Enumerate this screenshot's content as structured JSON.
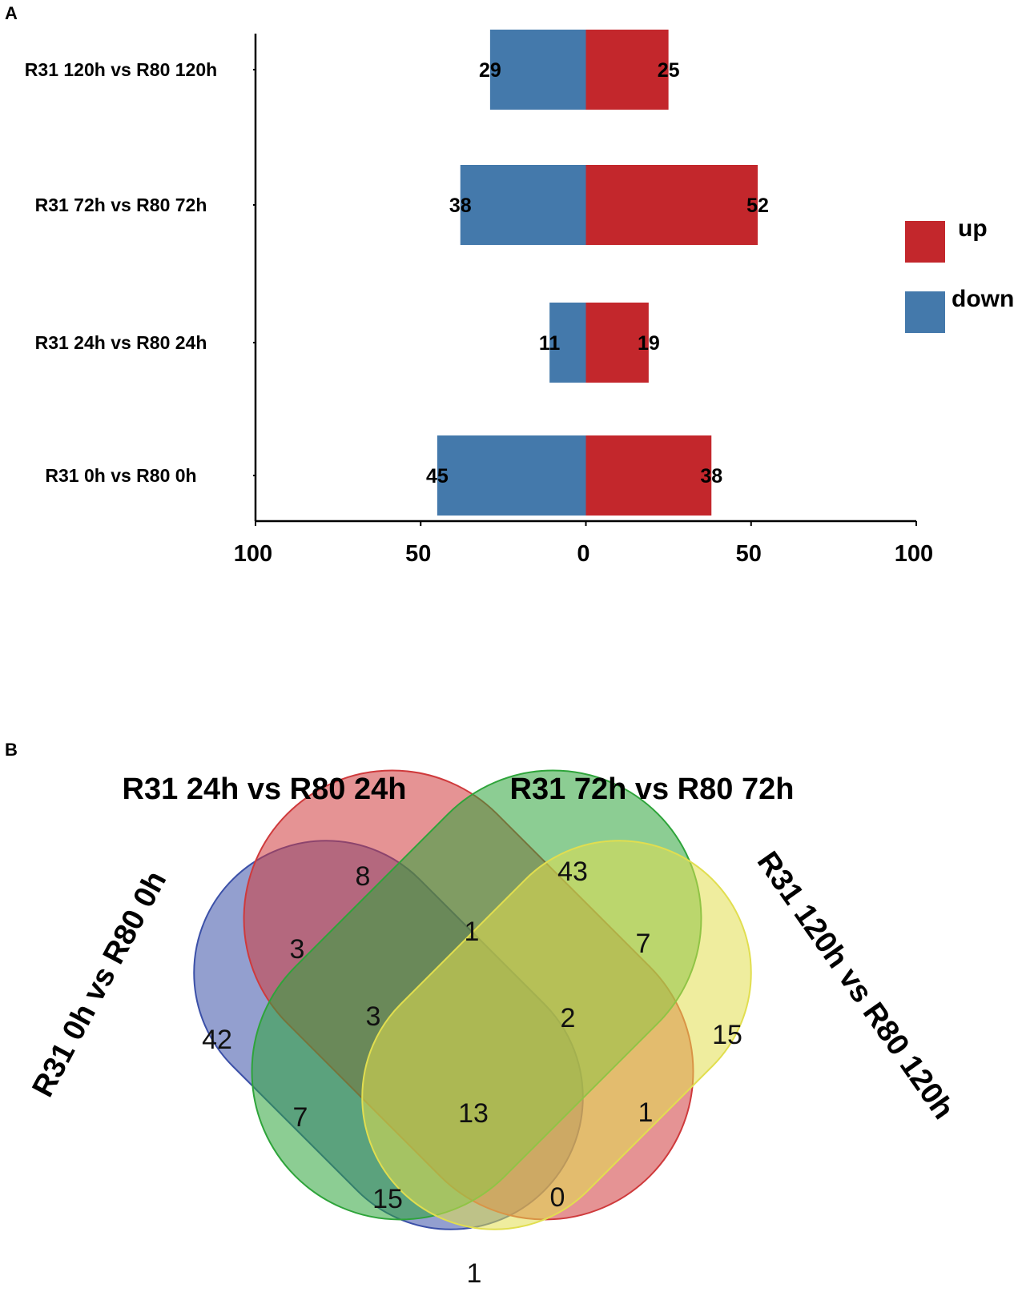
{
  "panels": {
    "a": "A",
    "b": "B"
  },
  "colors": {
    "up": "#c3272c",
    "down": "#4479ab",
    "set1": "#3b50a8",
    "set2": "#cf3a3c",
    "set3": "#2ea43a",
    "set4": "#e1de4f"
  },
  "chart_data": [
    {
      "type": "bar",
      "orientation": "horizontal",
      "stacked": "diverging",
      "categories": [
        "R31 120h vs R80 120h",
        "R31 72h vs R80 72h",
        "R31 24h vs R80 24h",
        "R31 0h vs R80 0h"
      ],
      "series": [
        {
          "name": "up",
          "values": [
            25,
            52,
            19,
            38
          ]
        },
        {
          "name": "down",
          "values": [
            29,
            38,
            11,
            45
          ]
        }
      ],
      "value_labels": {
        "up": [
          "25",
          "52",
          "19",
          "38"
        ],
        "down": [
          "29",
          "38",
          "11",
          "45"
        ]
      },
      "xlim": [
        -100,
        100
      ],
      "xticks": [
        -100,
        -50,
        0,
        50,
        100
      ],
      "xtick_labels": [
        "100",
        "50",
        "0",
        "50",
        "100"
      ],
      "legend": [
        "up",
        "down"
      ],
      "legend_position": "right",
      "title": "",
      "xlabel": "",
      "ylabel": ""
    },
    {
      "type": "venn",
      "sets": [
        "R31 0h vs R80 0h",
        "R31 24h vs R80 24h",
        "R31 72h vs R80 72h",
        "R31 120h vs R80 120h"
      ],
      "regions": [
        {
          "sets": [
            "R31 0h vs R80 0h"
          ],
          "value": 42
        },
        {
          "sets": [
            "R31 24h vs R80 24h"
          ],
          "value": 8
        },
        {
          "sets": [
            "R31 72h vs R80 72h"
          ],
          "value": 43
        },
        {
          "sets": [
            "R31 120h vs R80 120h"
          ],
          "value": 15
        },
        {
          "sets": [
            "R31 0h vs R80 0h",
            "R31 24h vs R80 24h"
          ],
          "value": 3
        },
        {
          "sets": [
            "R31 24h vs R80 24h",
            "R31 72h vs R80 72h"
          ],
          "value": 1
        },
        {
          "sets": [
            "R31 72h vs R80 72h",
            "R31 120h vs R80 120h"
          ],
          "value": 7
        },
        {
          "sets": [
            "R31 0h vs R80 0h",
            "R31 24h vs R80 24h",
            "R31 72h vs R80 72h"
          ],
          "value": 3
        },
        {
          "sets": [
            "R31 24h vs R80 24h",
            "R31 72h vs R80 72h",
            "R31 120h vs R80 120h"
          ],
          "value": 2
        },
        {
          "sets": [
            "R31 0h vs R80 0h",
            "R31 72h vs R80 72h"
          ],
          "value": 7
        },
        {
          "sets": [
            "R31 0h vs R80 0h",
            "R31 24h vs R80 24h",
            "R31 72h vs R80 72h",
            "R31 120h vs R80 120h"
          ],
          "value": 13
        },
        {
          "sets": [
            "R31 24h vs R80 24h",
            "R31 120h vs R80 120h"
          ],
          "value": 1
        },
        {
          "sets": [
            "R31 0h vs R80 0h",
            "R31 72h vs R80 72h",
            "R31 120h vs R80 120h"
          ],
          "value": 15
        },
        {
          "sets": [
            "R31 0h vs R80 0h",
            "R31 24h vs R80 24h",
            "R31 120h vs R80 120h"
          ],
          "value": 0
        },
        {
          "sets": [
            "R31 0h vs R80 0h",
            "R31 120h vs R80 120h"
          ],
          "value": 1
        }
      ]
    }
  ]
}
